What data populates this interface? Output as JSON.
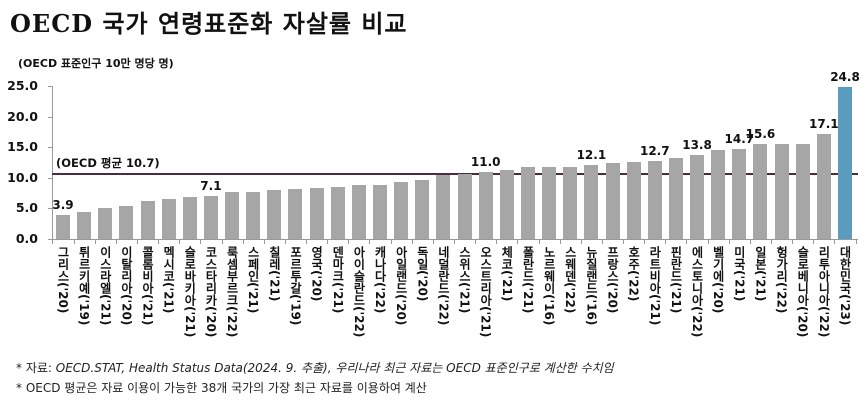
{
  "title": "OECD 국가 연령표준화 자살률 비교",
  "notes": {
    "source_prefix": "* 자료: ",
    "source_body": "OECD.STAT, Health Status Data(2024. 9. 추출), 우리나라 최근 자료는 OECD 표준인구로 계산한 수치임",
    "average_note": "* OECD 평균은 자료 이용이 가능한 38개 국가의 가장 최근 자료를 이용하여 계산"
  },
  "colors": {
    "bar": "#a6a6a6",
    "highlight_bar": "#5b9bbd",
    "average_line": "#4a2c3c"
  },
  "chart_data": {
    "type": "bar",
    "title": "OECD 국가 연령표준화 자살률 비교",
    "xlabel": "",
    "ylabel": "(OECD 표준인구 10만 명당 명)",
    "ylim": [
      0,
      25
    ],
    "yticks": [
      "0.0",
      "5.0",
      "10.0",
      "15.0",
      "20.0",
      "25.0"
    ],
    "grid": false,
    "legend": null,
    "reference_line": {
      "label": "(OECD 평균 10.7)",
      "value": 10.7
    },
    "highlight_category": "대한민국('23)",
    "categories": [
      "그리스('20)",
      "튀르키예('19)",
      "이스라엘('21)",
      "이탈리아('20)",
      "콜롬비아('21)",
      "멕시코('21)",
      "슬로바키아('21)",
      "코스타리카('20)",
      "룩셈부르크('22)",
      "스페인('21)",
      "칠레('21)",
      "포르투갈('19)",
      "영국('20)",
      "덴마크('21)",
      "아이슬란드('22)",
      "캐나다('22)",
      "아일랜드('20)",
      "독일('20)",
      "네덜란드('22)",
      "스위스('21)",
      "오스트리아('21)",
      "체코('21)",
      "폴란드('21)",
      "노르웨이('16)",
      "스웨덴('22)",
      "뉴질랜드('16)",
      "프랑스('20)",
      "호주('22)",
      "라트비아('21)",
      "핀란드('21)",
      "에스토니아('22)",
      "벨기에('20)",
      "미국('21)",
      "일본('21)",
      "헝가리('22)",
      "슬로베니아('20)",
      "리투아니아('22)",
      "대한민국('23)"
    ],
    "values": [
      3.9,
      4.4,
      5.1,
      5.4,
      6.2,
      6.6,
      6.9,
      7.1,
      7.6,
      7.6,
      8.0,
      8.2,
      8.3,
      8.5,
      8.8,
      8.9,
      9.3,
      9.7,
      10.5,
      10.7,
      11.0,
      11.2,
      11.7,
      11.7,
      11.7,
      12.1,
      12.4,
      12.6,
      12.7,
      13.2,
      13.8,
      14.5,
      14.7,
      15.6,
      15.6,
      15.6,
      17.1,
      24.8
    ],
    "data_labels": {
      "그리스('20)": "3.9",
      "코스타리카('20)": "7.1",
      "오스트리아('21)": "11.0",
      "뉴질랜드('16)": "12.1",
      "라트비아('21)": "12.7",
      "에스토니아('22)": "13.8",
      "미국('21)": "14.7",
      "일본('21)": "15.6",
      "리투아니아('22)": "17.1",
      "대한민국('23)": "24.8"
    }
  }
}
